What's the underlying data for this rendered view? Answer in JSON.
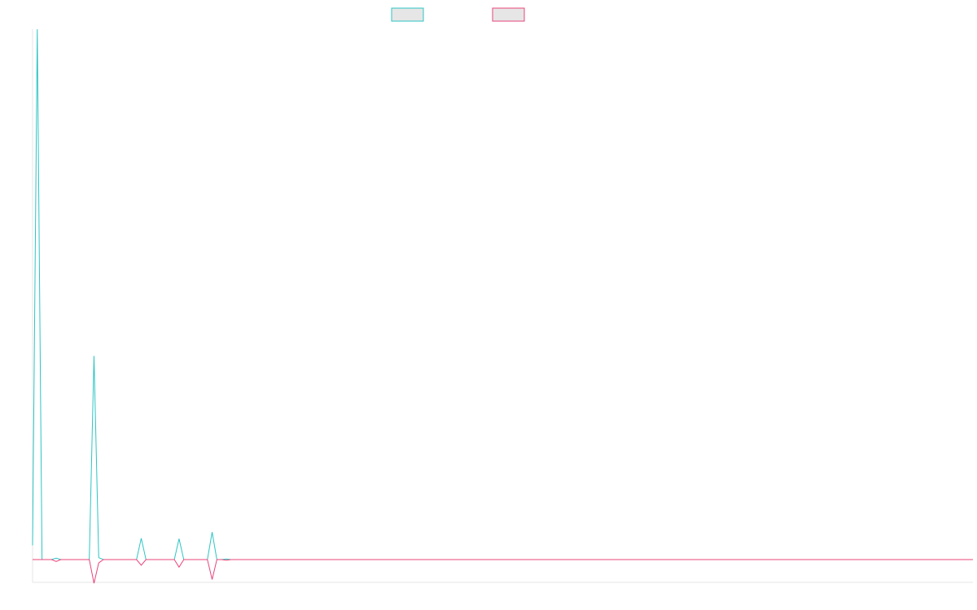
{
  "colors": {
    "background": "#ffffff",
    "axis": "#e5e5e5",
    "legend_fill": "#e6e6e6"
  },
  "chart_data": {
    "type": "line",
    "title": "",
    "xlabel": "",
    "ylabel": "",
    "grid": false,
    "legend_position": "top",
    "x_count": 200,
    "ylim": [
      -5,
      112
    ],
    "series": [
      {
        "color": "#2ec4c4",
        "points": [
          [
            0,
            3
          ],
          [
            1,
            112
          ],
          [
            2,
            0
          ],
          [
            4,
            0
          ],
          [
            5,
            0.3
          ],
          [
            6,
            0
          ],
          [
            12,
            0
          ],
          [
            13,
            43
          ],
          [
            14,
            0.4
          ],
          [
            15,
            0
          ],
          [
            22,
            0
          ],
          [
            23,
            4.5
          ],
          [
            24,
            0
          ],
          [
            30,
            0
          ],
          [
            31,
            4.4
          ],
          [
            32,
            0
          ],
          [
            37,
            0
          ],
          [
            38,
            5.8
          ],
          [
            39,
            0
          ],
          [
            40,
            0
          ],
          [
            41,
            0.1
          ],
          [
            42,
            0
          ],
          [
            199,
            0
          ]
        ]
      },
      {
        "color": "#e8457a",
        "points": [
          [
            0,
            0
          ],
          [
            4,
            0
          ],
          [
            5,
            -0.4
          ],
          [
            6,
            0
          ],
          [
            12,
            0
          ],
          [
            13,
            -5
          ],
          [
            14,
            -0.7
          ],
          [
            15,
            0
          ],
          [
            22,
            0
          ],
          [
            23,
            -1.2
          ],
          [
            24,
            0
          ],
          [
            30,
            0
          ],
          [
            31,
            -1.6
          ],
          [
            32,
            0
          ],
          [
            37,
            0
          ],
          [
            38,
            -4.2
          ],
          [
            39,
            0
          ],
          [
            40,
            0
          ],
          [
            41,
            -0.15
          ],
          [
            42,
            0
          ],
          [
            199,
            0
          ]
        ]
      }
    ]
  }
}
